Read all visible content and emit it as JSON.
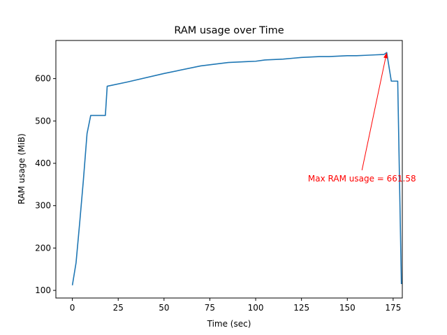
{
  "chart_data": {
    "type": "line",
    "title": "RAM usage over Time",
    "xlabel": "Time (sec)",
    "ylabel": "RAM usage (MiB)",
    "xlim": [
      -9,
      180
    ],
    "ylim": [
      82,
      690
    ],
    "xticks": [
      0,
      25,
      50,
      75,
      100,
      125,
      150,
      175
    ],
    "yticks": [
      100,
      200,
      300,
      400,
      500,
      600
    ],
    "grid": false,
    "legend": "none",
    "series": [
      {
        "color": "#1f77b4",
        "x": [
          0,
          2,
          4,
          6,
          8,
          10,
          12,
          14,
          16,
          18,
          19,
          30,
          50,
          70,
          85,
          90,
          95,
          100,
          105,
          110,
          115,
          120,
          125,
          130,
          135,
          140,
          145,
          150,
          155,
          160,
          165,
          170,
          171.5,
          174,
          176,
          177.5,
          179.5
        ],
        "y": [
          112,
          165,
          260,
          360,
          470,
          513,
          513,
          513,
          513,
          513,
          582,
          592,
          612,
          630,
          638,
          639,
          640,
          641,
          644,
          645,
          646,
          648,
          650,
          651,
          652,
          652,
          653,
          654,
          654,
          655,
          656,
          657,
          661.58,
          594,
          594,
          594,
          115
        ]
      }
    ],
    "annotation": {
      "text": "Max RAM usage = 661.58",
      "color": "#ff0000",
      "point": [
        171.5,
        661.58
      ],
      "text_pos": [
        158,
        364
      ]
    }
  }
}
